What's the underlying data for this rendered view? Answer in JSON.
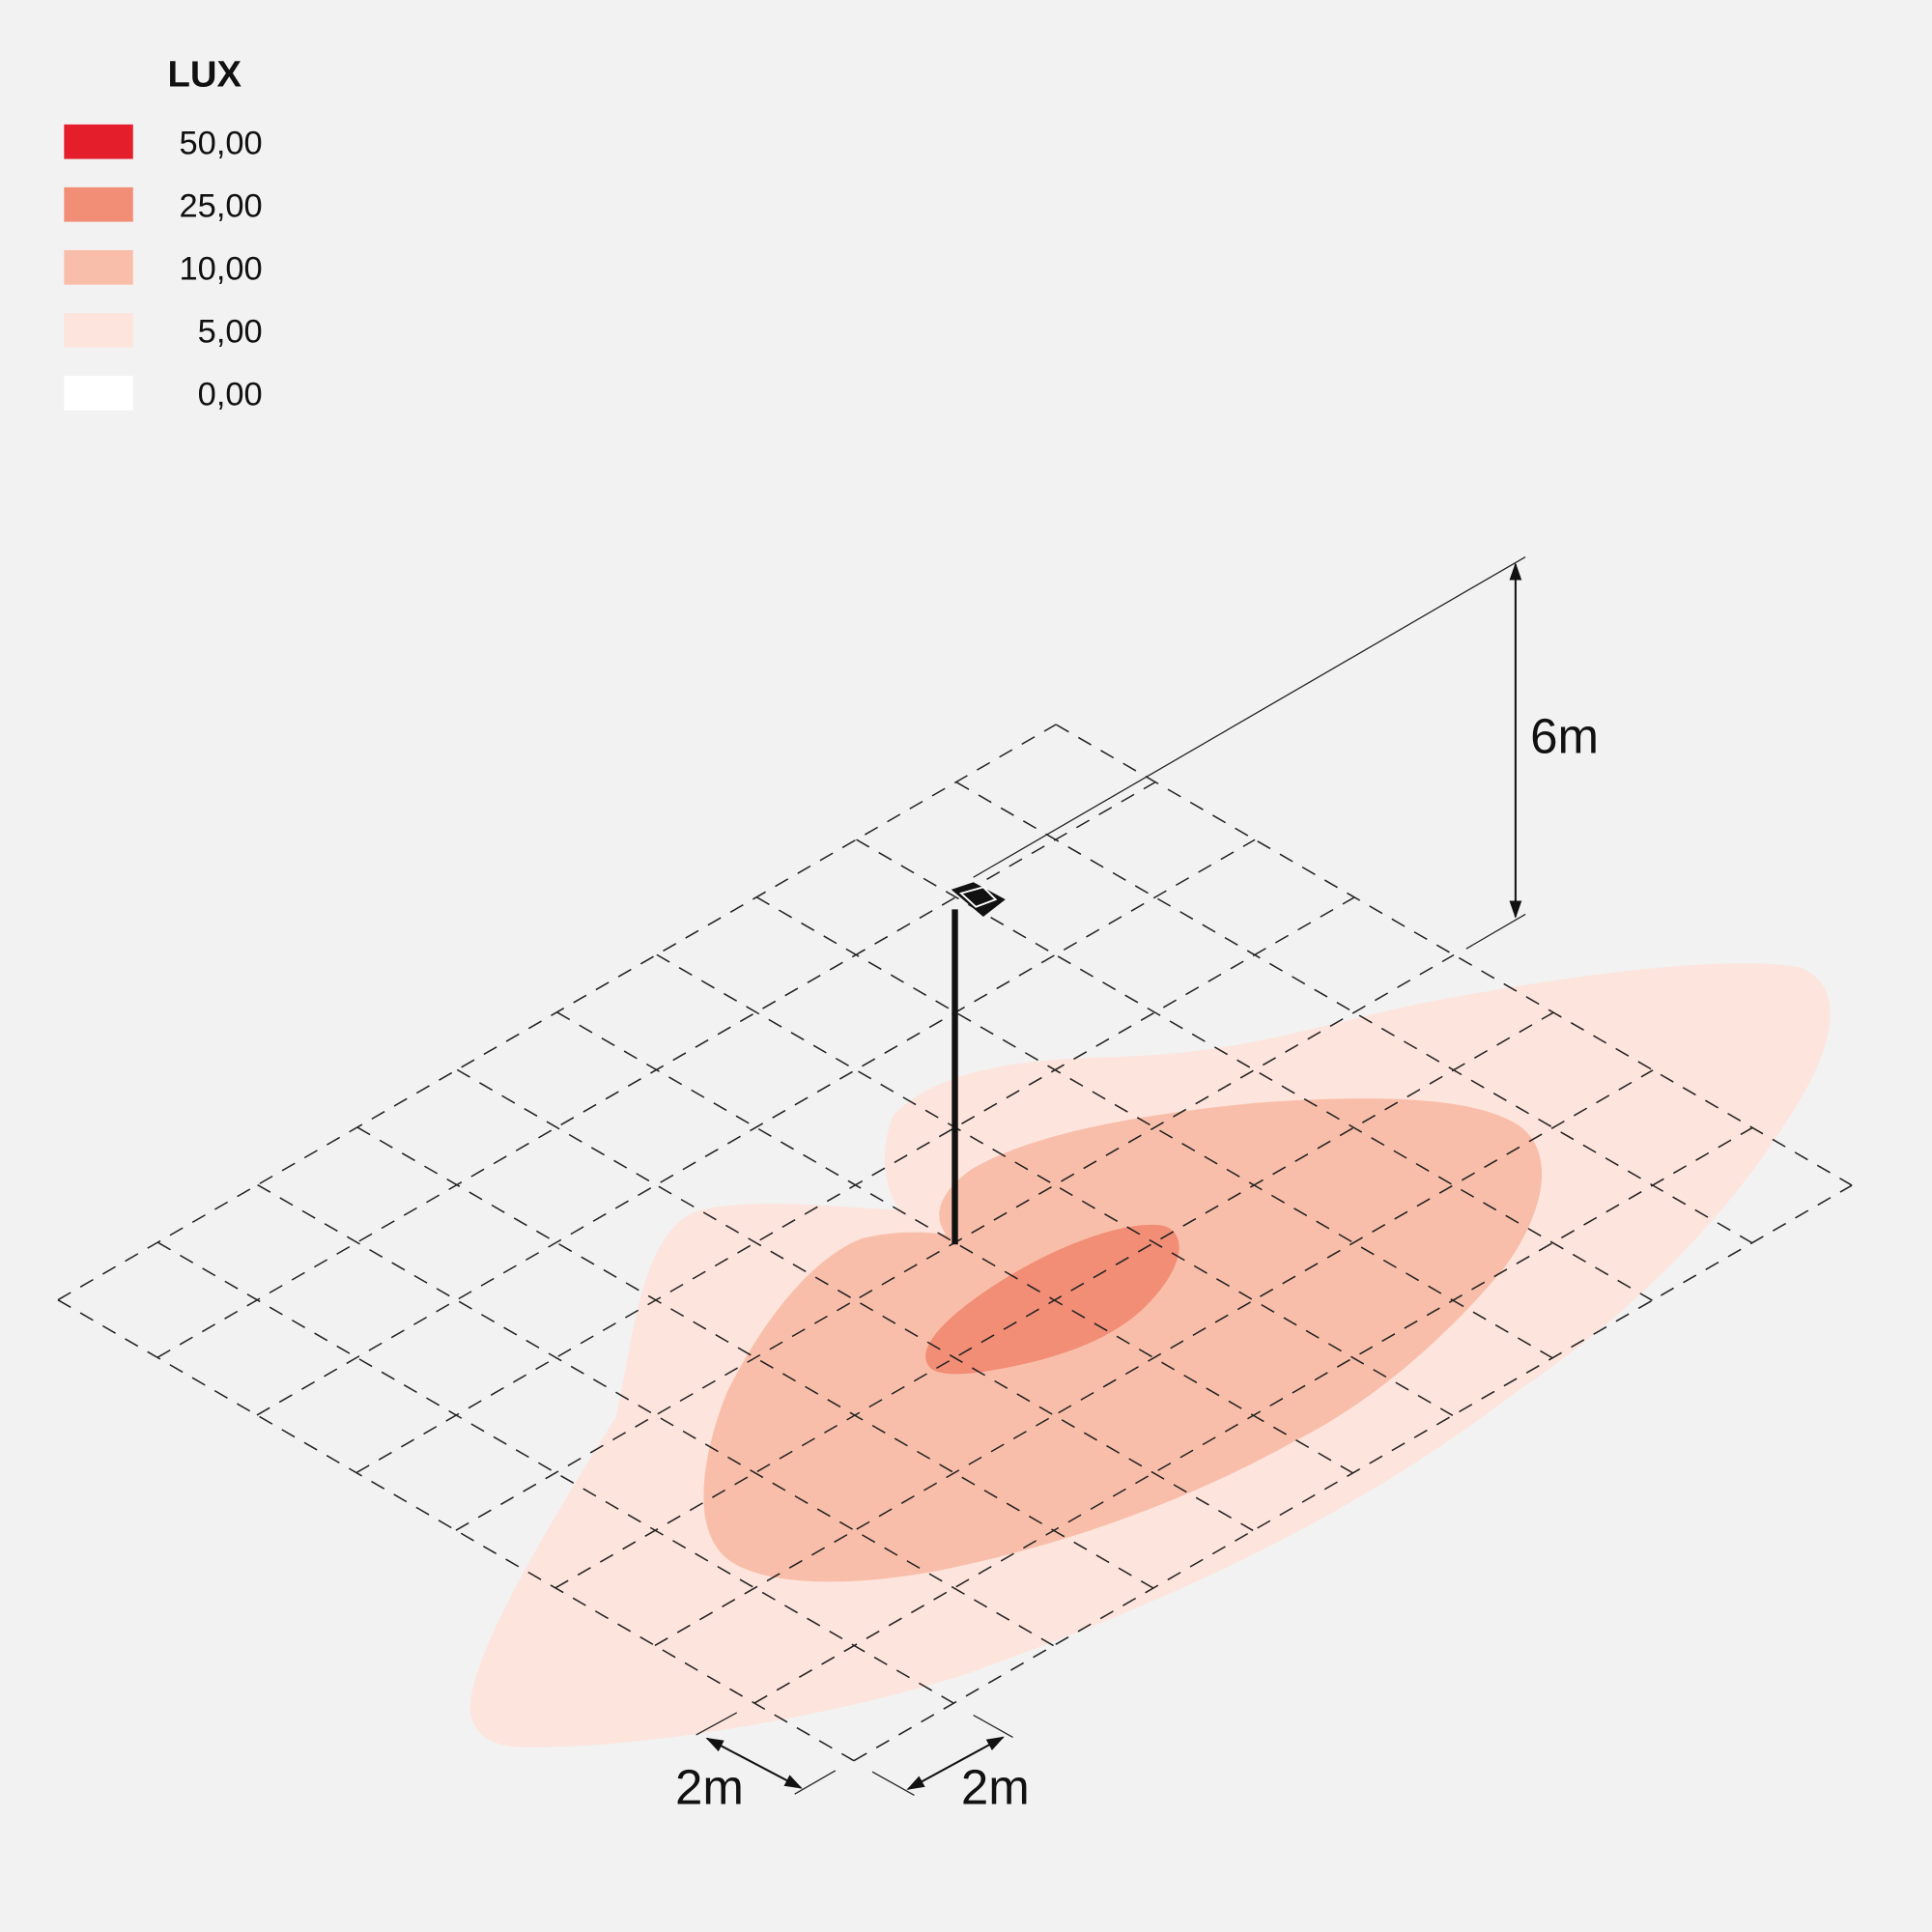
{
  "legend": {
    "title": "LUX",
    "items": [
      {
        "label": "50,00",
        "color": "#e41e2b"
      },
      {
        "label": "25,00",
        "color": "#f28d76"
      },
      {
        "label": "10,00",
        "color": "#f9bea9"
      },
      {
        "label": "5,00",
        "color": "#fde4dc"
      },
      {
        "label": "0,00",
        "color": "#ffffff"
      }
    ]
  },
  "dimensions": {
    "height": "6m",
    "grid_x": "2m",
    "grid_y": "2m"
  }
}
